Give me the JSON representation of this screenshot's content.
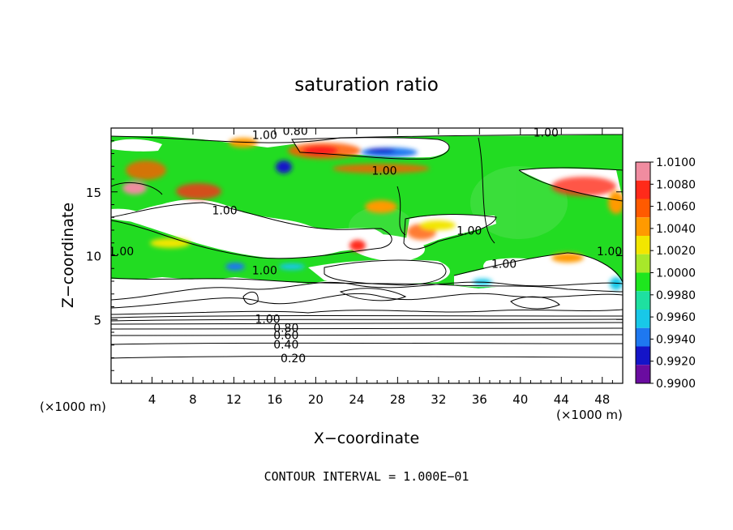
{
  "chart_data": {
    "type": "heatmap",
    "title": "saturation ratio",
    "xlabel": "X−coordinate",
    "ylabel": "Z−coordinate",
    "x_unit_left": "(×1000 m)",
    "x_unit_right": "(×1000 m)",
    "footer": "CONTOUR INTERVAL = 1.000E−01",
    "xlim": [
      0,
      50
    ],
    "ylim": [
      0,
      20
    ],
    "x_ticks": [
      4,
      8,
      12,
      16,
      20,
      24,
      28,
      32,
      36,
      40,
      44,
      48
    ],
    "y_ticks": [
      5,
      10,
      15
    ],
    "colorbar": {
      "levels": [
        "1.0100",
        "1.0080",
        "1.0060",
        "1.0040",
        "1.0020",
        "1.0000",
        "0.9980",
        "0.9960",
        "0.9940",
        "0.9920",
        "0.9900"
      ],
      "colors": [
        "#f08ca0",
        "#ff2a1a",
        "#ff5a00",
        "#ff9a00",
        "#f2e600",
        "#a8e82a",
        "#1ee61e",
        "#1ee0a0",
        "#18c8e8",
        "#1e78f0",
        "#1414c8",
        "#6a0ca0"
      ]
    },
    "contour_labels": [
      {
        "text": "0.20",
        "x": 17.8,
        "y": 1.9
      },
      {
        "text": "0.40",
        "x": 17.1,
        "y": 3.0
      },
      {
        "text": "0.60",
        "x": 17.1,
        "y": 3.7
      },
      {
        "text": "0.80",
        "x": 17.1,
        "y": 4.3
      },
      {
        "text": "1.00",
        "x": 15.3,
        "y": 5.0
      },
      {
        "text": "1.00",
        "x": 15.0,
        "y": 8.8
      },
      {
        "text": "1.00",
        "x": 11.1,
        "y": 13.5
      },
      {
        "text": "1.00",
        "x": 1.0,
        "y": 10.3
      },
      {
        "text": "1.00",
        "x": 26.7,
        "y": 16.6
      },
      {
        "text": "1.00",
        "x": 35.0,
        "y": 11.9
      },
      {
        "text": "1.00",
        "x": 38.4,
        "y": 9.3
      },
      {
        "text": "1.00",
        "x": 48.7,
        "y": 10.3
      },
      {
        "text": "1.00",
        "x": 15.0,
        "y": 19.4
      },
      {
        "text": "0.80",
        "x": 18.0,
        "y": 19.7
      },
      {
        "text": "1.00",
        "x": 42.5,
        "y": 19.6
      }
    ]
  }
}
